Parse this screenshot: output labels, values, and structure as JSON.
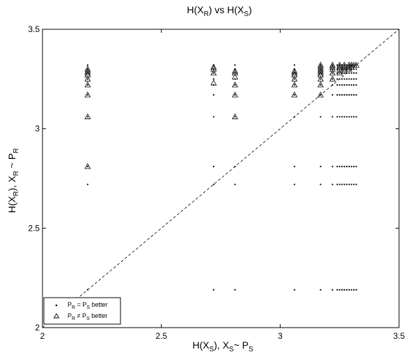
{
  "chart_data": {
    "type": "scatter",
    "title": "H(X_R) vs H(X_S)",
    "xlabel": "H(X_S), X_S~ P_S",
    "ylabel": "H(X_R), X_R ~ P_R",
    "xlim": [
      2,
      3.5
    ],
    "ylim": [
      2,
      3.5
    ],
    "x_ticks": [
      "2",
      "2.5",
      "3",
      "3.5"
    ],
    "y_ticks": [
      "2",
      "2.5",
      "3",
      "3.5"
    ],
    "grid": false,
    "legend_position": "bottom-left",
    "reference_line": {
      "style": "dashed",
      "from": [
        2,
        2
      ],
      "to": [
        3.5,
        3.5
      ]
    },
    "legend": [
      {
        "marker": "dot",
        "text": "P_R = P_S better"
      },
      {
        "marker": "triangle",
        "text": "P_R ≠ P_S better"
      }
    ],
    "dot_columns_x": [
      2.19,
      2.72,
      2.81,
      3.06,
      3.17,
      3.22,
      3.24,
      3.25,
      3.26,
      3.27,
      3.28,
      3.29,
      3.3,
      3.31,
      3.32
    ],
    "dot_column_y": [
      2.19,
      2.72,
      2.81,
      3.06,
      3.17,
      3.22,
      3.25,
      3.28,
      3.3,
      3.32
    ],
    "triangle_columns": [
      {
        "x": 2.19,
        "y": [
          2.81,
          3.06,
          3.17,
          3.22,
          3.25,
          3.27,
          3.28,
          3.29,
          3.3
        ]
      },
      {
        "x": 2.72,
        "y": [
          3.23,
          3.28,
          3.3,
          3.31
        ]
      },
      {
        "x": 2.81,
        "y": [
          3.06,
          3.17,
          3.22,
          3.26,
          3.28,
          3.29
        ]
      },
      {
        "x": 3.06,
        "y": [
          3.17,
          3.22,
          3.25,
          3.27,
          3.28,
          3.29
        ]
      },
      {
        "x": 3.17,
        "y": [
          3.17,
          3.22,
          3.25,
          3.27,
          3.28,
          3.29,
          3.3,
          3.31,
          3.32
        ]
      },
      {
        "x": 3.22,
        "y": [
          3.25,
          3.28,
          3.3,
          3.31,
          3.32
        ]
      },
      {
        "x": 3.25,
        "y": [
          3.28,
          3.3,
          3.31,
          3.32
        ]
      },
      {
        "x": 3.27,
        "y": [
          3.29,
          3.3,
          3.31,
          3.32
        ]
      },
      {
        "x": 3.29,
        "y": [
          3.3,
          3.31,
          3.32
        ]
      },
      {
        "x": 3.3,
        "y": [
          3.31,
          3.32
        ]
      },
      {
        "x": 3.31,
        "y": [
          3.32
        ]
      },
      {
        "x": 3.32,
        "y": [
          3.32
        ]
      }
    ]
  }
}
